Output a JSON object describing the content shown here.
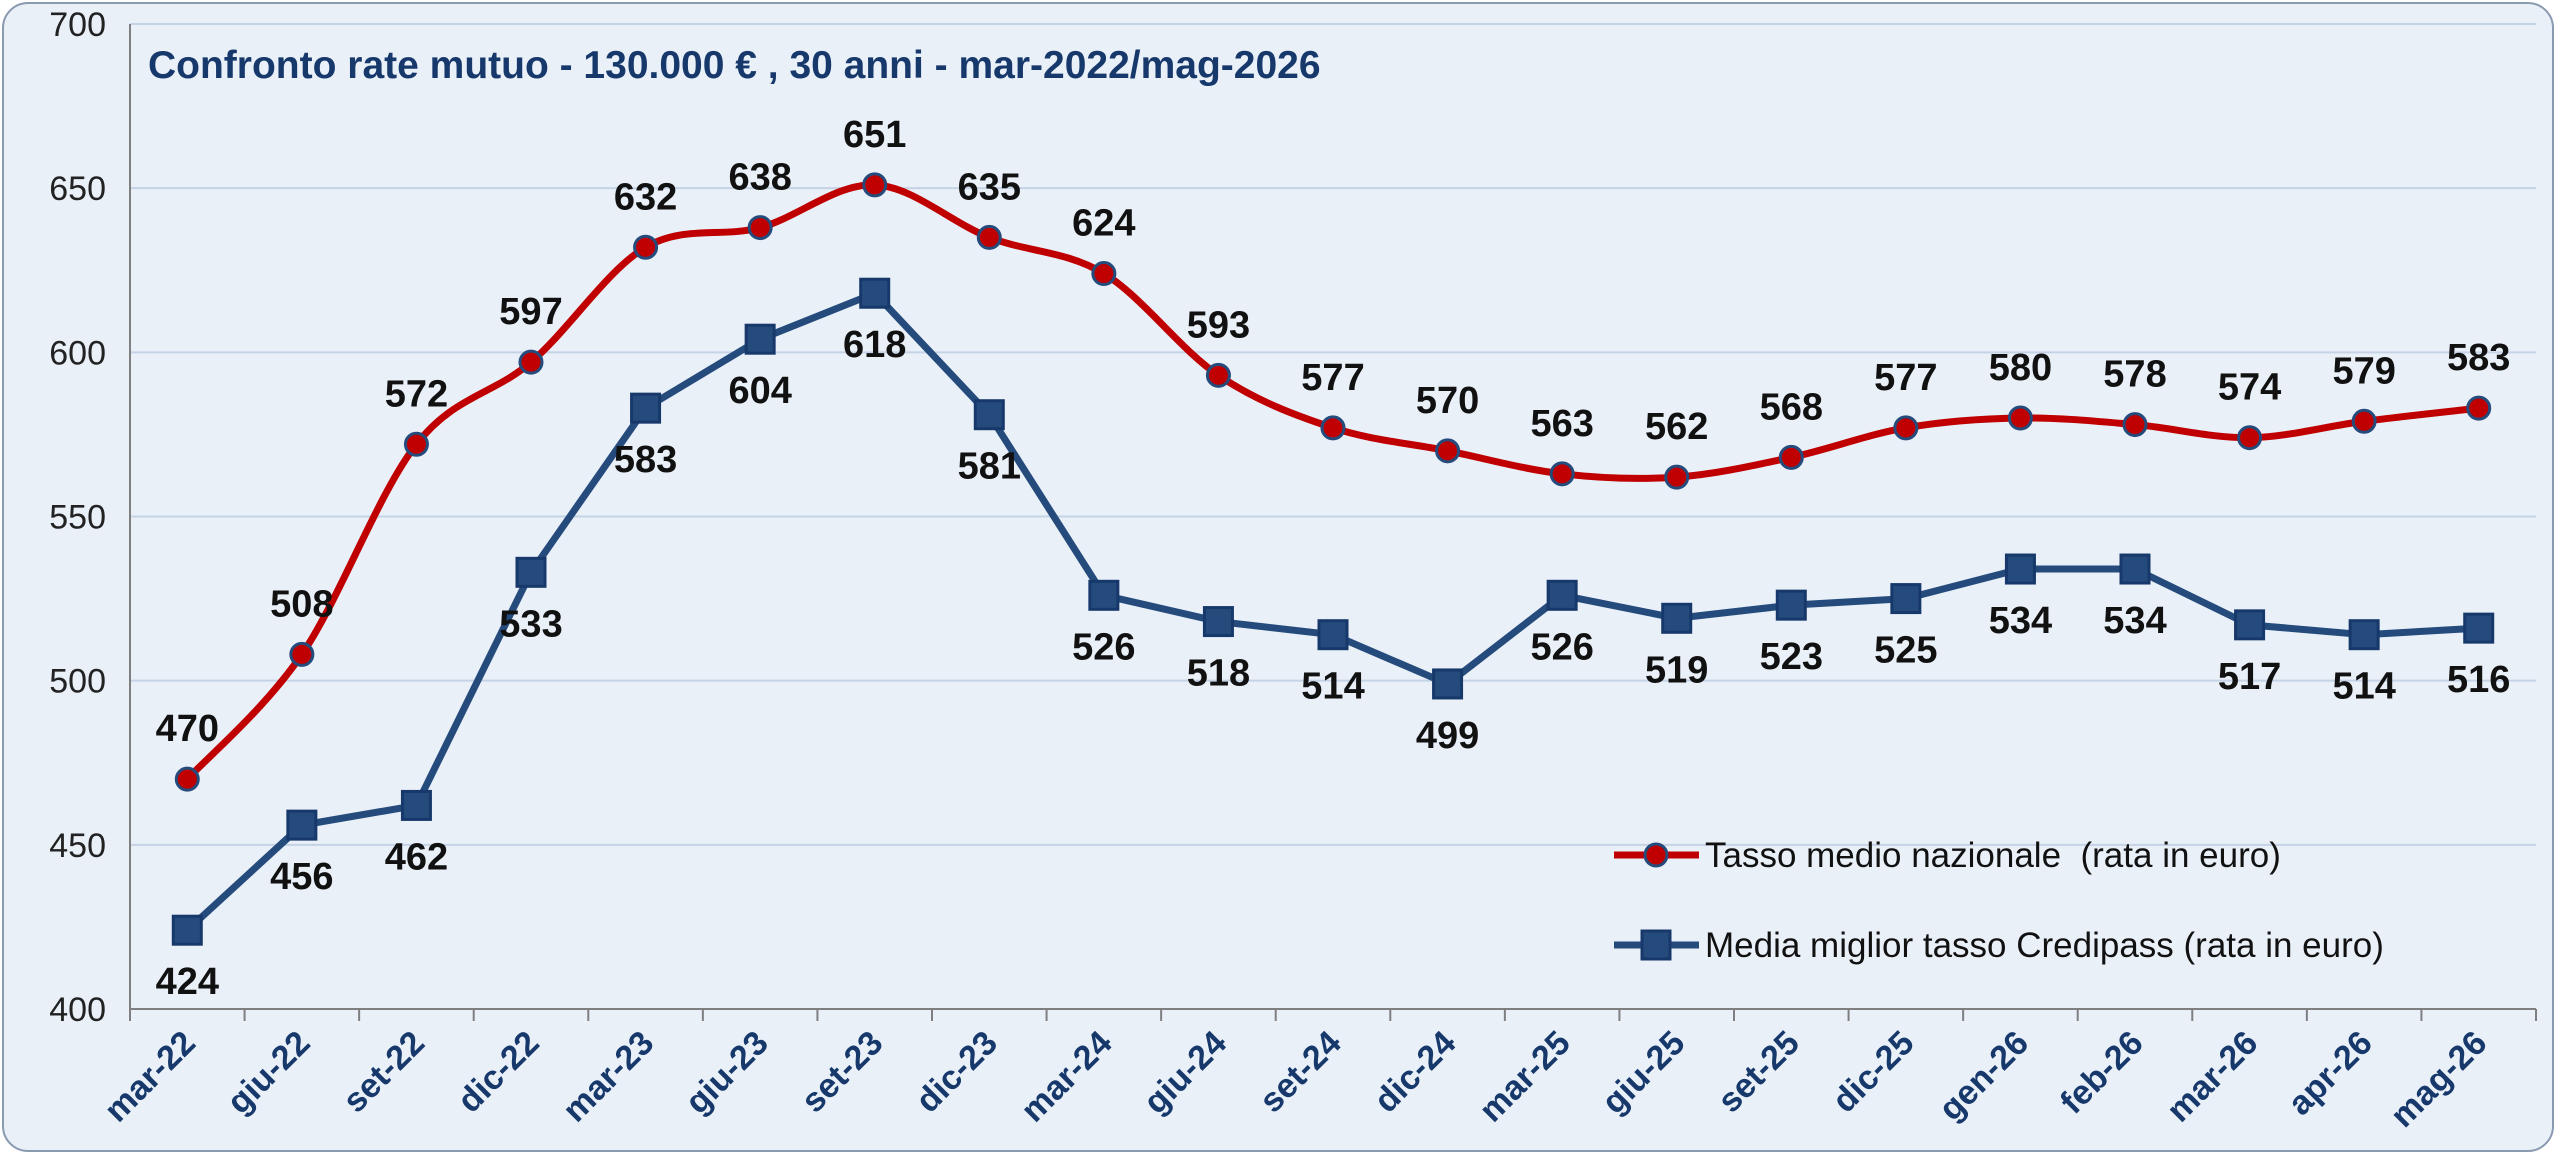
{
  "chart_data": {
    "type": "line",
    "title": "Confronto rate mutuo - 130.000 € , 30 anni - mar-2022/mag-2026",
    "xlabel": "",
    "ylabel": "",
    "ylim": [
      400,
      700
    ],
    "yticks": [
      400,
      450,
      500,
      550,
      600,
      650,
      700
    ],
    "grid": true,
    "legend_position": "bottom-right",
    "categories": [
      "mar-22",
      "giu-22",
      "set-22",
      "dic-22",
      "mar-23",
      "giu-23",
      "set-23",
      "dic-23",
      "mar-24",
      "giu-24",
      "set-24",
      "dic-24",
      "mar-25",
      "giu-25",
      "set-25",
      "dic-25",
      "gen-26",
      "feb-26",
      "mar-26",
      "apr-26",
      "mag-26"
    ],
    "series": [
      {
        "name": "Tasso medio nazionale  (rata in euro)",
        "color": "#c00000",
        "marker": "circle",
        "values": [
          470,
          508,
          572,
          597,
          632,
          638,
          651,
          635,
          624,
          593,
          577,
          570,
          563,
          562,
          568,
          577,
          580,
          578,
          574,
          579,
          583
        ],
        "label_position": "above"
      },
      {
        "name": "Media miglior tasso Credipass (rata in euro)",
        "color": "#254b7c",
        "marker": "square",
        "values": [
          424,
          456,
          462,
          533,
          583,
          604,
          618,
          581,
          526,
          518,
          514,
          499,
          526,
          519,
          523,
          525,
          534,
          534,
          517,
          514,
          516
        ],
        "label_position": "below"
      }
    ]
  }
}
